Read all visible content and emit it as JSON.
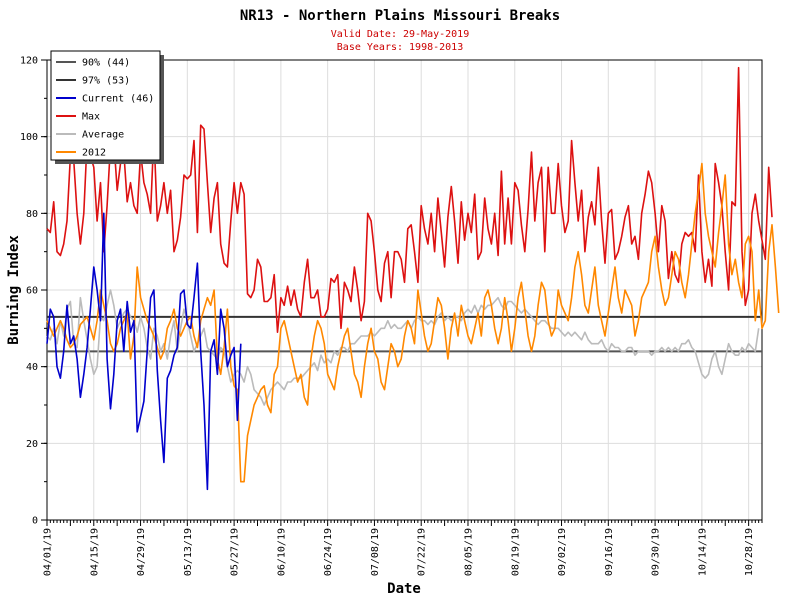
{
  "chart_data": {
    "type": "line",
    "title": "NR13 - Northern Plains Missouri Breaks",
    "subtitle_lines": [
      "Valid Date: 29-May-2019",
      "Base Years: 1998-2013"
    ],
    "xlabel": "Date",
    "ylabel": "Burning Index",
    "ylim": [
      0,
      120
    ],
    "yticks": [
      0,
      20,
      40,
      60,
      80,
      100,
      120
    ],
    "xlim": [
      "2019-04-01",
      "2019-11-01"
    ],
    "xticks": [
      "04/01/19",
      "04/15/19",
      "04/29/19",
      "05/13/19",
      "05/27/19",
      "06/10/19",
      "06/24/19",
      "07/08/19",
      "07/22/19",
      "08/05/19",
      "08/19/19",
      "09/02/19",
      "09/16/19",
      "09/30/19",
      "10/14/19",
      "10/28/19"
    ],
    "grid": true,
    "legend_position": "top-left",
    "thresholds": [
      {
        "name": "90% (44)",
        "value": 44,
        "color": "#555555"
      },
      {
        "name": "97% (53)",
        "value": 53,
        "color": "#333333"
      }
    ],
    "series": [
      {
        "name": "Current (46)",
        "color": "#0000cc",
        "start": "2019-04-01",
        "values": [
          46,
          55,
          53,
          40,
          37,
          44,
          56,
          46,
          48,
          42,
          32,
          38,
          45,
          55,
          66,
          60,
          52,
          80,
          42,
          29,
          38,
          52,
          55,
          44,
          57,
          49,
          52,
          23,
          27,
          31,
          44,
          58,
          60,
          39,
          26,
          15,
          37,
          39,
          43,
          45,
          59,
          60,
          51,
          50,
          58,
          67,
          44,
          30,
          8,
          44,
          47,
          38,
          55,
          50,
          40,
          43,
          45,
          26,
          46
        ]
      },
      {
        "name": "Max",
        "color": "#dd1111",
        "start": "2019-04-01",
        "values": [
          76,
          75,
          83,
          70,
          69,
          72,
          78,
          95,
          94,
          80,
          72,
          80,
          99,
          95,
          92,
          78,
          88,
          70,
          82,
          98,
          99,
          86,
          93,
          96,
          83,
          88,
          82,
          80,
          96,
          88,
          85,
          80,
          101,
          78,
          82,
          88,
          80,
          86,
          70,
          73,
          79,
          90,
          89,
          90,
          99,
          75,
          103,
          102,
          88,
          75,
          84,
          88,
          72,
          67,
          66,
          78,
          88,
          80,
          88,
          85,
          59,
          58,
          60,
          68,
          66,
          57,
          57,
          58,
          64,
          49,
          58,
          56,
          61,
          56,
          60,
          55,
          53,
          62,
          68,
          58,
          58,
          60,
          53,
          53,
          55,
          63,
          62,
          64,
          50,
          62,
          60,
          57,
          66,
          60,
          52,
          57,
          80,
          78,
          70,
          60,
          57,
          67,
          70,
          58,
          70,
          70,
          68,
          62,
          76,
          77,
          70,
          62,
          82,
          76,
          72,
          80,
          70,
          84,
          75,
          66,
          79,
          87,
          78,
          67,
          83,
          73,
          80,
          75,
          85,
          68,
          70,
          84,
          76,
          72,
          80,
          69,
          91,
          72,
          84,
          72,
          88,
          86,
          77,
          70,
          81,
          96,
          78,
          88,
          92,
          70,
          92,
          80,
          80,
          93,
          82,
          75,
          78,
          99,
          88,
          78,
          86,
          70,
          79,
          83,
          77,
          92,
          78,
          67,
          80,
          81,
          68,
          70,
          74,
          79,
          82,
          72,
          74,
          68,
          80,
          85,
          91,
          88,
          80,
          70,
          82,
          78,
          63,
          70,
          64,
          62,
          72,
          75,
          74,
          75,
          70,
          90,
          70,
          62,
          68,
          61,
          93,
          88,
          82,
          70,
          60,
          83,
          82,
          118,
          70,
          56,
          60,
          80,
          85,
          78,
          73,
          68,
          92,
          79
        ]
      },
      {
        "name": "Average",
        "color": "#bbbbbb",
        "start": "2019-04-01",
        "values": [
          48,
          47,
          50,
          46,
          52,
          48,
          55,
          57,
          46,
          45,
          58,
          52,
          47,
          42,
          38,
          40,
          53,
          52,
          56,
          60,
          56,
          50,
          52,
          54,
          55,
          53,
          52,
          49,
          53,
          50,
          45,
          42,
          50,
          48,
          44,
          46,
          42,
          48,
          52,
          44,
          50,
          55,
          52,
          48,
          44,
          46,
          48,
          50,
          45,
          44,
          43,
          42,
          45,
          44,
          40,
          36,
          38,
          39,
          38,
          36,
          40,
          38,
          34,
          33,
          32,
          30,
          32,
          34,
          35,
          36,
          35,
          34,
          36,
          36,
          37,
          37,
          37,
          38,
          39,
          40,
          41,
          39,
          43,
          41,
          42,
          41,
          44,
          43,
          45,
          45,
          44,
          46,
          46,
          47,
          48,
          48,
          48,
          49,
          48,
          49,
          50,
          50,
          52,
          50,
          51,
          50,
          50,
          51,
          52,
          50,
          52,
          53,
          52,
          52,
          51,
          52,
          51,
          53,
          54,
          52,
          53,
          52,
          53,
          53,
          52,
          54,
          55,
          54,
          56,
          54,
          56,
          55,
          56,
          56,
          57,
          58,
          56,
          55,
          57,
          57,
          56,
          55,
          54,
          55,
          54,
          53,
          52,
          51,
          52,
          52,
          51,
          50,
          50,
          50,
          49,
          48,
          49,
          48,
          49,
          48,
          47,
          49,
          47,
          46,
          46,
          46,
          47,
          45,
          44,
          46,
          45,
          45,
          44,
          44,
          45,
          45,
          43,
          44,
          44,
          44,
          44,
          43,
          44,
          44,
          45,
          44,
          45,
          44,
          45,
          44,
          46,
          46,
          47,
          45,
          44,
          41,
          38,
          37,
          38,
          42,
          44,
          40,
          38,
          42,
          46,
          44,
          43,
          43,
          45,
          44,
          46,
          45,
          44,
          50
        ]
      },
      {
        "name": "2012",
        "color": "#ff8800",
        "start": "2019-04-01",
        "values": [
          52,
          50,
          48,
          50,
          52,
          50,
          47,
          45,
          46,
          48,
          51,
          52,
          53,
          50,
          47,
          52,
          60,
          56,
          52,
          46,
          44,
          46,
          50,
          52,
          54,
          42,
          48,
          66,
          58,
          55,
          52,
          50,
          48,
          45,
          42,
          44,
          50,
          52,
          55,
          50,
          48,
          50,
          52,
          53,
          48,
          45,
          52,
          55,
          58,
          56,
          60,
          42,
          38,
          45,
          55,
          40,
          35,
          34,
          10,
          10,
          22,
          26,
          30,
          32,
          34,
          35,
          30,
          28,
          38,
          40,
          50,
          52,
          48,
          44,
          40,
          36,
          38,
          32,
          30,
          42,
          48,
          52,
          50,
          46,
          38,
          36,
          34,
          40,
          44,
          48,
          50,
          44,
          38,
          36,
          32,
          40,
          46,
          50,
          44,
          42,
          36,
          34,
          40,
          46,
          44,
          40,
          42,
          48,
          52,
          50,
          46,
          60,
          54,
          48,
          44,
          46,
          52,
          58,
          56,
          50,
          42,
          50,
          54,
          48,
          56,
          52,
          48,
          46,
          50,
          54,
          48,
          58,
          60,
          56,
          50,
          46,
          50,
          58,
          52,
          44,
          50,
          58,
          62,
          55,
          48,
          44,
          48,
          56,
          62,
          60,
          52,
          48,
          50,
          60,
          56,
          54,
          52,
          58,
          66,
          70,
          64,
          56,
          54,
          60,
          66,
          56,
          52,
          48,
          54,
          60,
          66,
          58,
          54,
          60,
          58,
          56,
          48,
          52,
          58,
          60,
          62,
          70,
          74,
          66,
          60,
          56,
          58,
          64,
          70,
          68,
          62,
          58,
          64,
          72,
          80,
          86,
          93,
          80,
          74,
          70,
          66,
          75,
          82,
          90,
          72,
          64,
          68,
          62,
          58,
          72,
          74,
          70,
          52,
          60,
          50,
          52,
          70,
          77,
          66,
          54
        ]
      }
    ]
  }
}
